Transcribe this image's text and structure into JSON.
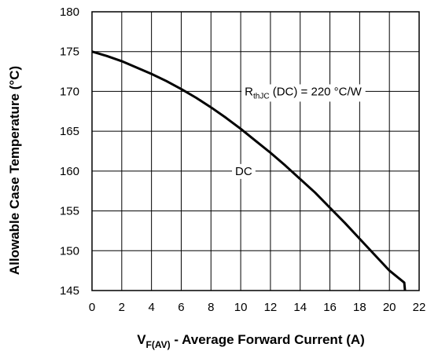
{
  "chart_data": {
    "type": "line",
    "xlabel": {
      "main": "V",
      "sub": "F(AV)",
      "rest": " - Average Forward Current (A)"
    },
    "ylabel": "Allowable Case Temperature (°C)",
    "xlim": [
      0,
      22
    ],
    "ylim": [
      145,
      180
    ],
    "xticks": [
      0,
      2,
      4,
      6,
      8,
      10,
      12,
      14,
      16,
      18,
      20,
      22
    ],
    "yticks": [
      145,
      150,
      155,
      160,
      165,
      170,
      175,
      180
    ],
    "grid": true,
    "series": [
      {
        "name": "DC",
        "x": [
          0,
          1,
          2,
          3,
          4,
          5,
          6,
          7,
          8,
          9,
          10,
          11,
          12,
          13,
          14,
          15,
          16,
          17,
          18,
          19,
          20,
          21,
          21,
          21.05
        ],
        "y": [
          175,
          174.45,
          173.8,
          173.0,
          172.2,
          171.3,
          170.3,
          169.2,
          168.0,
          166.7,
          165.3,
          163.8,
          162.3,
          160.7,
          159.0,
          157.3,
          155.4,
          153.5,
          151.5,
          149.5,
          147.5,
          146.0,
          146.0,
          145
        ]
      }
    ],
    "annotations": [
      {
        "id": "rth",
        "main": "R",
        "sub": "thJC",
        "rest": " (DC) = 220 °C/W",
        "x": 14.2,
        "y": 170
      },
      {
        "id": "dc",
        "text": "DC",
        "x": 10.2,
        "y": 160
      }
    ]
  }
}
